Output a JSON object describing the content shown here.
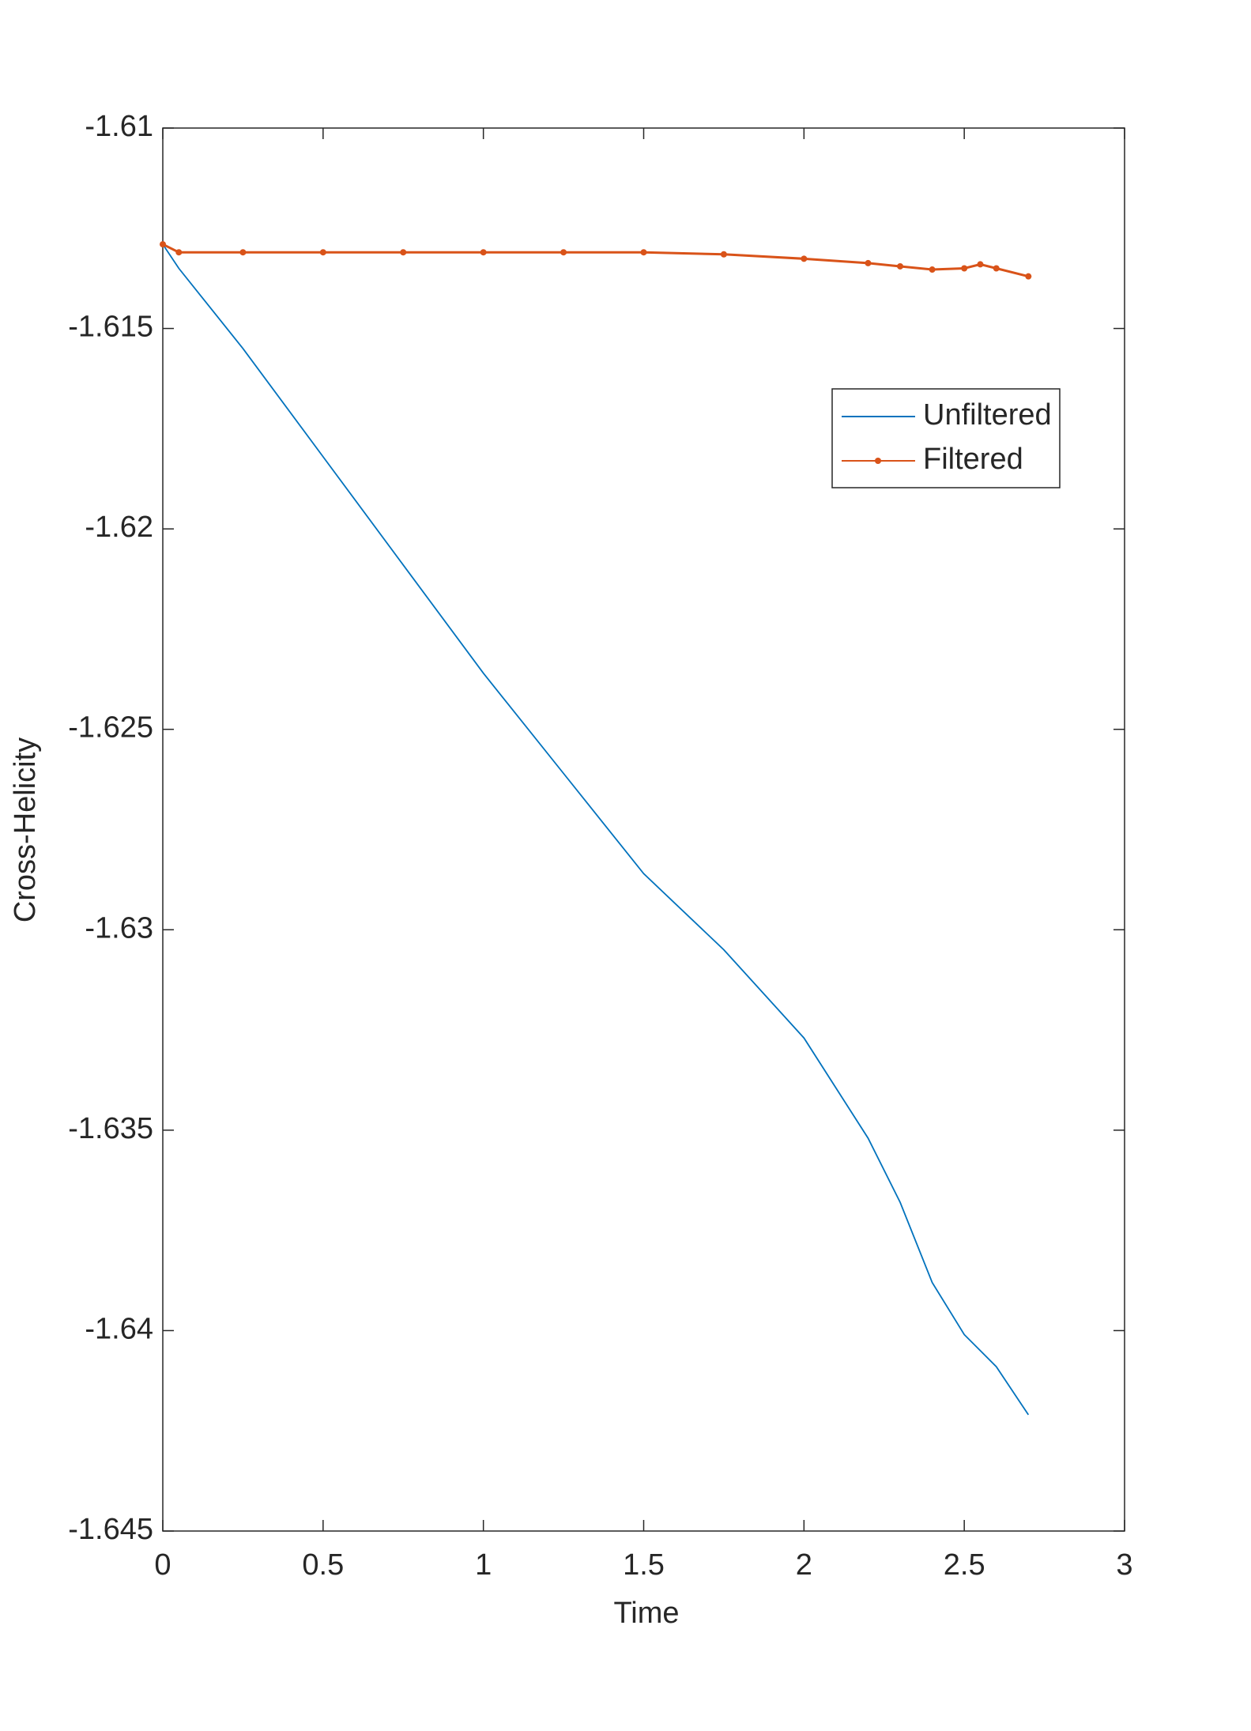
{
  "chart_data": {
    "type": "line",
    "xlabel": "Time",
    "ylabel": "Cross-Helicity",
    "x": [
      0,
      0.05,
      0.25,
      0.5,
      0.75,
      1,
      1.25,
      1.5,
      1.75,
      2,
      2.2,
      2.3,
      2.4,
      2.5,
      2.55,
      2.6,
      2.7
    ],
    "series": [
      {
        "name": "Unfiltered",
        "color": "#0072bd",
        "marker": false,
        "values": [
          -1.6129,
          -1.6135,
          -1.6155,
          -1.6182,
          -1.6209,
          -1.6236,
          -1.6261,
          -1.6286,
          -1.6305,
          -1.6327,
          -1.6352,
          -1.6368,
          -1.6388,
          -1.6401,
          -1.6405,
          -1.6409,
          -1.6421
        ]
      },
      {
        "name": "Filtered",
        "color": "#d95319",
        "marker": true,
        "values": [
          -1.6129,
          -1.6131,
          -1.6131,
          -1.6131,
          -1.6131,
          -1.6131,
          -1.6131,
          -1.6131,
          -1.61315,
          -1.61326,
          -1.61337,
          -1.61345,
          -1.61353,
          -1.6135,
          -1.6134,
          -1.6135,
          -1.6137
        ]
      }
    ],
    "xlim": [
      0,
      3
    ],
    "xticks": [
      0,
      0.5,
      1,
      1.5,
      2,
      2.5,
      3
    ],
    "ylim": [
      -1.645,
      -1.61
    ],
    "yticks": [
      -1.645,
      -1.64,
      -1.635,
      -1.63,
      -1.625,
      -1.62,
      -1.615,
      -1.61
    ],
    "grid": false,
    "legend": "northeast"
  }
}
